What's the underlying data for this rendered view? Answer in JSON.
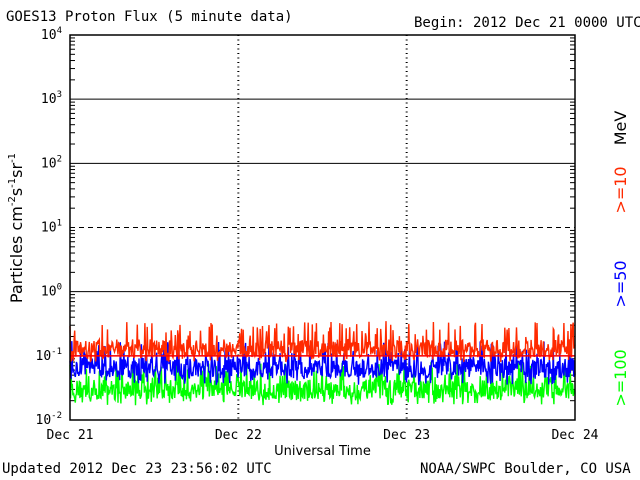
{
  "header": {
    "title": "GOES13 Proton Flux (5 minute data)",
    "begin": "Begin: 2012 Dec 21 0000 UTC"
  },
  "footer": {
    "updated": "Updated 2012 Dec 23 23:56:02 UTC",
    "credit": "NOAA/SWPC Boulder, CO USA"
  },
  "chart_data": {
    "type": "line",
    "title": "GOES13 Proton Flux (5 minute data)",
    "xlabel": "Universal Time",
    "ylabel": "Particles cm-2 s-1 sr-1",
    "ylabel_parts": {
      "base": "Particles cm",
      "e1": "-2",
      "m1": "s",
      "e2": "-1",
      "m2": "sr",
      "e3": "-1"
    },
    "yscale": "log",
    "ylim": [
      0.01,
      10000
    ],
    "y_ticks": [
      {
        "value": 0.01,
        "base": "10",
        "exp": "-2"
      },
      {
        "value": 0.1,
        "base": "10",
        "exp": "-1"
      },
      {
        "value": 1,
        "base": "10",
        "exp": "0"
      },
      {
        "value": 10,
        "base": "10",
        "exp": "1"
      },
      {
        "value": 100,
        "base": "10",
        "exp": "2"
      },
      {
        "value": 1000,
        "base": "10",
        "exp": "3"
      },
      {
        "value": 10000,
        "base": "10",
        "exp": "4"
      }
    ],
    "x_ticks": [
      "Dec 21",
      "Dec 22",
      "Dec 23",
      "Dec 24"
    ],
    "xlim_days": [
      0,
      3
    ],
    "legend_title": "MeV",
    "thresholds": [
      {
        "value": 10,
        "style": "dashed"
      },
      {
        "value": 0.1,
        "color": "#ff0000",
        "style": "solid"
      }
    ],
    "series": [
      {
        "name": ">=10",
        "color": "#ff2a00",
        "baseline": 0.13,
        "range": [
          0.08,
          0.35
        ]
      },
      {
        "name": ">=50",
        "color": "#0000ff",
        "baseline": 0.065,
        "range": [
          0.035,
          0.17
        ]
      },
      {
        "name": ">=100",
        "color": "#00ff00",
        "baseline": 0.03,
        "range": [
          0.017,
          0.08
        ]
      }
    ],
    "grid": "horizontal"
  }
}
